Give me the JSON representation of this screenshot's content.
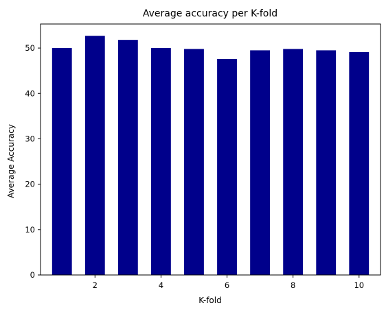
{
  "chart_data": {
    "type": "bar",
    "title": "Average accuracy per K-fold",
    "xlabel": "K-fold",
    "ylabel": "Average Accuracy",
    "x": [
      1,
      2,
      3,
      4,
      5,
      6,
      7,
      8,
      9,
      10
    ],
    "values": [
      50.0,
      52.7,
      51.8,
      50.0,
      49.8,
      47.6,
      49.5,
      49.8,
      49.5,
      49.1
    ],
    "xlim": [
      0.35,
      10.65
    ],
    "ylim": [
      0,
      55.3
    ],
    "xticks": [
      2,
      4,
      6,
      8,
      10
    ],
    "yticks": [
      0,
      10,
      20,
      30,
      40,
      50
    ],
    "bar_color": "#00008b",
    "grid": false,
    "legend": "none"
  }
}
